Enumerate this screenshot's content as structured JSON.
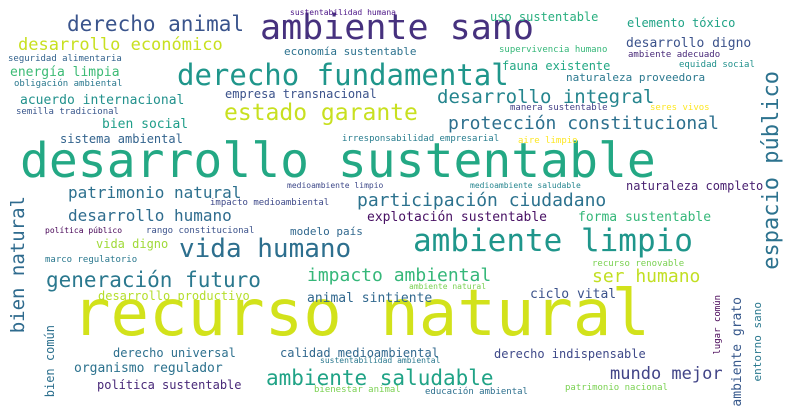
{
  "words": [
    {
      "id": "w1",
      "text": "recurso natural",
      "color": "#d2e21b"
    },
    {
      "id": "w2",
      "text": "desarrollo sustentable",
      "color": "#23a884"
    },
    {
      "id": "w3",
      "text": "ambiente sano",
      "color": "#46317e"
    },
    {
      "id": "w4",
      "text": "derecho fundamental",
      "color": "#1f968b"
    },
    {
      "id": "w5",
      "text": "ambiente limpio",
      "color": "#1f968b"
    },
    {
      "id": "w6",
      "text": "vida humano",
      "color": "#2d6f8e"
    },
    {
      "id": "w7",
      "text": "derecho animal",
      "color": "#3a548c"
    },
    {
      "id": "w8",
      "text": "desarrollo económico",
      "color": "#c8e020"
    },
    {
      "id": "w9",
      "text": "estado garante",
      "color": "#c8e020"
    },
    {
      "id": "w10",
      "text": "desarrollo integral",
      "color": "#25858e"
    },
    {
      "id": "w11",
      "text": "espacio público",
      "color": "#2c728e"
    },
    {
      "id": "w12",
      "text": "protección constitucional",
      "color": "#2d708e"
    },
    {
      "id": "w13",
      "text": "participación ciudadano",
      "color": "#2c728e"
    },
    {
      "id": "w14",
      "text": "generación futuro",
      "color": "#2a788e"
    },
    {
      "id": "w15",
      "text": "ambiente saludable",
      "color": "#20a386"
    },
    {
      "id": "w16",
      "text": "impacto ambiental",
      "color": "#35b779"
    },
    {
      "id": "w17",
      "text": "patrimonio natural",
      "color": "#2d708e"
    },
    {
      "id": "w18",
      "text": "desarrollo humano",
      "color": "#2f6c8e"
    },
    {
      "id": "w19",
      "text": "ser humano",
      "color": "#c2df23"
    },
    {
      "id": "w20",
      "text": "bien natural",
      "color": "#2f6b8e"
    },
    {
      "id": "w21",
      "text": "mundo mejor",
      "color": "#414487"
    },
    {
      "id": "w22",
      "text": "uso sustentable",
      "color": "#29af7f"
    },
    {
      "id": "w23",
      "text": "elemento tóxico",
      "color": "#20a386"
    },
    {
      "id": "w24",
      "text": "desarrollo digno",
      "color": "#3b528b"
    },
    {
      "id": "w25",
      "text": "sustentabilidad humana",
      "color": "#4a1486"
    },
    {
      "id": "w26",
      "text": "economía sustentable",
      "color": "#2c728e"
    },
    {
      "id": "w27",
      "text": "supervivencia humano",
      "color": "#35b779"
    },
    {
      "id": "w28",
      "text": "seguridad alimentaria",
      "color": "#33638d"
    },
    {
      "id": "w29",
      "text": "energía limpia",
      "color": "#3cbb75"
    },
    {
      "id": "w30",
      "text": "fauna existente",
      "color": "#22a884"
    },
    {
      "id": "w31",
      "text": "equidad social",
      "color": "#21918c"
    },
    {
      "id": "w32",
      "text": "naturaleza proveedora",
      "color": "#2a788e"
    },
    {
      "id": "w33",
      "text": "obligación ambiental",
      "color": "#2a788e"
    },
    {
      "id": "w34",
      "text": "empresa transnacional",
      "color": "#3b528b"
    },
    {
      "id": "w35",
      "text": "acuerdo internacional",
      "color": "#21918c"
    },
    {
      "id": "w36",
      "text": "manera sustentable",
      "color": "#433e85"
    },
    {
      "id": "w37",
      "text": "seres vivos",
      "color": "#fde725"
    },
    {
      "id": "w38",
      "text": "semilla tradicional",
      "color": "#39568c"
    },
    {
      "id": "w39",
      "text": "bien social",
      "color": "#1f9e89"
    },
    {
      "id": "w40",
      "text": "irresponsabilidad empresarial",
      "color": "#287d8e"
    },
    {
      "id": "w41",
      "text": "sistema ambiental",
      "color": "#33638d"
    },
    {
      "id": "w42",
      "text": "aire limpio",
      "color": "#fde725"
    },
    {
      "id": "w43",
      "text": "lugar común",
      "color": "#440154"
    },
    {
      "id": "w44",
      "text": "medioambiente limpio",
      "color": "#3e4989"
    },
    {
      "id": "w45",
      "text": "medioambiente saludable",
      "color": "#25858e"
    },
    {
      "id": "w46",
      "text": "naturaleza completo",
      "color": "#481f70"
    },
    {
      "id": "w47",
      "text": "impacto medioambiental",
      "color": "#3e4989"
    },
    {
      "id": "w48",
      "text": "explotación sustentable",
      "color": "#471063"
    },
    {
      "id": "w49",
      "text": "forma sustentable",
      "color": "#35b779"
    },
    {
      "id": "w50",
      "text": "política público",
      "color": "#440154"
    },
    {
      "id": "w51",
      "text": "rango constitucional",
      "color": "#3b528b"
    },
    {
      "id": "w52",
      "text": "modelo país",
      "color": "#31688e"
    },
    {
      "id": "w53",
      "text": "vida digno",
      "color": "#a0da39"
    },
    {
      "id": "w54",
      "text": "marco regulatorio",
      "color": "#2a788e"
    },
    {
      "id": "w55",
      "text": "recurso renovable",
      "color": "#7ad151"
    },
    {
      "id": "w56",
      "text": "ambiente natural",
      "color": "#7ad151"
    },
    {
      "id": "w57",
      "text": "desarrollo productivo",
      "color": "#b5de2b"
    },
    {
      "id": "w58",
      "text": "animal sintiente",
      "color": "#31688e"
    },
    {
      "id": "w59",
      "text": "ciclo vital",
      "color": "#3b528b"
    },
    {
      "id": "w60",
      "text": "ambiente grato",
      "color": "#38598c"
    },
    {
      "id": "w61",
      "text": "entorno sano",
      "color": "#2a788e"
    },
    {
      "id": "w62",
      "text": "bien común",
      "color": "#2d708e"
    },
    {
      "id": "w63",
      "text": "derecho universal",
      "color": "#2d708e"
    },
    {
      "id": "w64",
      "text": "calidad medioambiental",
      "color": "#31688e"
    },
    {
      "id": "w65",
      "text": "derecho indispensable",
      "color": "#3e4989"
    },
    {
      "id": "w66",
      "text": "organismo regulador",
      "color": "#2c728e"
    },
    {
      "id": "w67",
      "text": "política sustentable",
      "color": "#482878"
    },
    {
      "id": "w68",
      "text": "sustentabilidad ambiental",
      "color": "#2a788e"
    },
    {
      "id": "w69",
      "text": "bienestar animal",
      "color": "#7ad151"
    },
    {
      "id": "w70",
      "text": "educación ambiental",
      "color": "#2d708e"
    },
    {
      "id": "w71",
      "text": "patrimonio nacional",
      "color": "#7ad151"
    },
    {
      "id": "w72",
      "text": "ambiente adecuado",
      "color": "#482878"
    }
  ]
}
